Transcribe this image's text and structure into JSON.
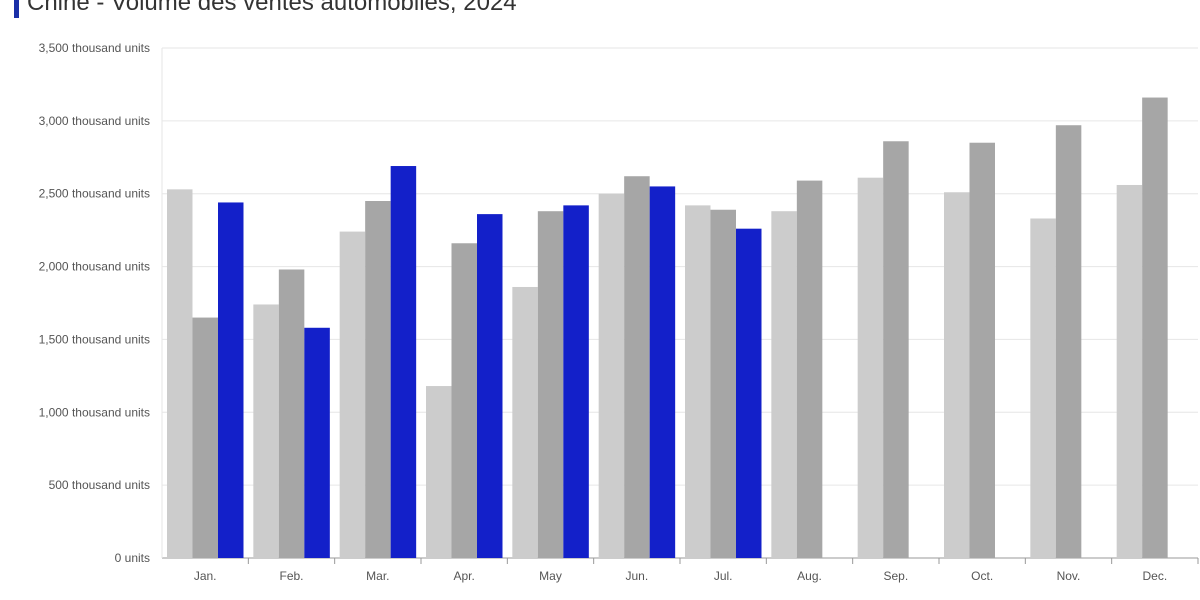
{
  "colors": {
    "accent": "#1a2fa8",
    "series": [
      "#cccccc",
      "#a6a6a6",
      "#1320c9"
    ],
    "grid": "#e6e6e6",
    "axis": "#999999"
  },
  "chart_data": {
    "type": "bar",
    "title": "Chine - Volume des ventes automobiles, 2024",
    "xlabel": "",
    "ylabel": "",
    "categories": [
      "Jan.",
      "Feb.",
      "Mar.",
      "Apr.",
      "May",
      "Jun.",
      "Jul.",
      "Aug.",
      "Sep.",
      "Oct.",
      "Nov.",
      "Dec."
    ],
    "ylim": [
      0,
      3500
    ],
    "yticks": [
      0,
      500,
      1000,
      1500,
      2000,
      2500,
      3000,
      3500
    ],
    "ytick_labels": [
      "0 units",
      "500 thousand units",
      "1,000 thousand units",
      "1,500 thousand units",
      "2,000 thousand units",
      "2,500 thousand units",
      "3,000 thousand units",
      "3,500 thousand units"
    ],
    "grid": true,
    "series": [
      {
        "values": [
          2530,
          1740,
          2240,
          1180,
          1860,
          2500,
          2420,
          2380,
          2610,
          2510,
          2330,
          2560
        ]
      },
      {
        "values": [
          1650,
          1980,
          2450,
          2160,
          2380,
          2620,
          2390,
          2590,
          2860,
          2850,
          2970,
          3160
        ]
      },
      {
        "values": [
          2440,
          1580,
          2690,
          2360,
          2420,
          2550,
          2260,
          null,
          null,
          null,
          null,
          null
        ]
      }
    ]
  }
}
